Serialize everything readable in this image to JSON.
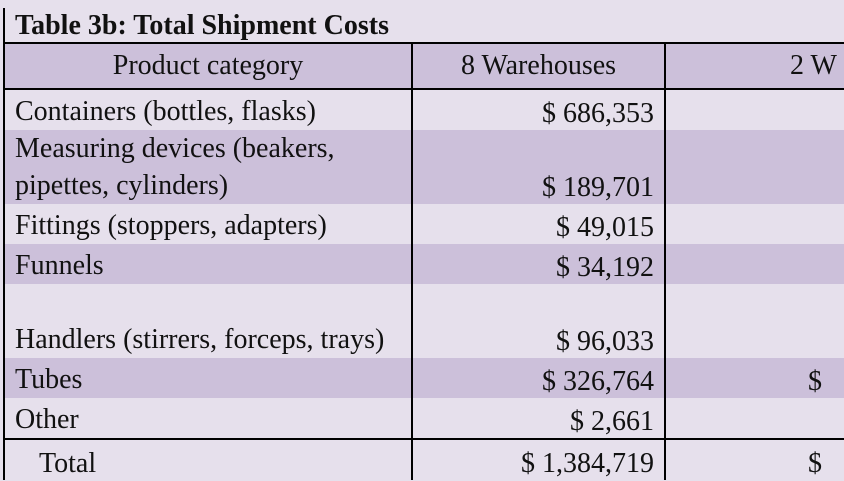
{
  "table": {
    "title": "Table 3b: Total Shipment Costs",
    "headers": {
      "category": "Product category",
      "warehouses_8": "8 Warehouses",
      "warehouses_2": "2 W"
    },
    "rows": [
      {
        "category": "Containers (bottles, flasks)",
        "cost_8": "$ 686,353",
        "cost_2": ""
      },
      {
        "category": "Measuring devices (beakers, pipettes, cylinders)",
        "cost_8": "$ 189,701",
        "cost_2": ""
      },
      {
        "category": "Fittings (stoppers, adapters)",
        "cost_8": "$ 49,015",
        "cost_2": ""
      },
      {
        "category": "Funnels",
        "cost_8": "$ 34,192",
        "cost_2": ""
      },
      {
        "category": "Handlers (stirrers, forceps, trays)",
        "cost_8": "$ 96,033",
        "cost_2": ""
      },
      {
        "category": "Tubes",
        "cost_8": "$ 326,764",
        "cost_2": "$"
      },
      {
        "category": "Other",
        "cost_8": "$ 2,661",
        "cost_2": ""
      }
    ],
    "total": {
      "label": "Total",
      "cost_8": "$ 1,384,719",
      "cost_2": "$"
    }
  }
}
